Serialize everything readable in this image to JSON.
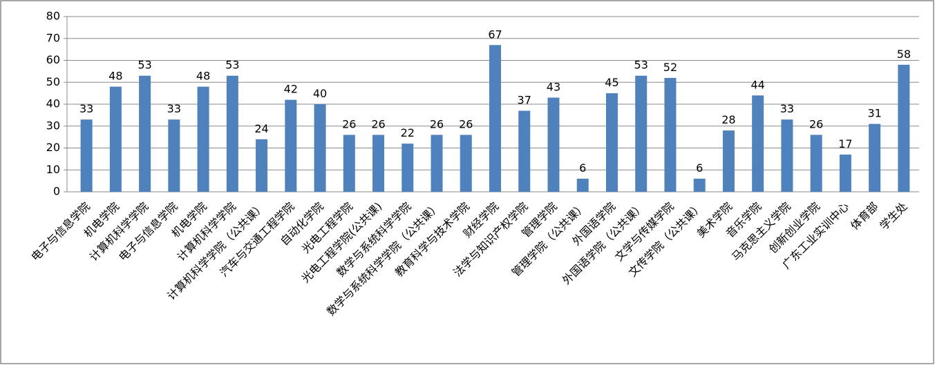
{
  "chart_data": {
    "type": "bar",
    "categories": [
      "电子与信息学院",
      "机电学院",
      "计算机科学学院",
      "电子与信息学院",
      "机电学院",
      "计算机科学学院",
      "计算机科学学院（公共课）",
      "汽车与交通工程学院",
      "自动化学院",
      "光电工程学院",
      "光电工程学院(公共课)",
      "数学与系统科学学院",
      "数学与系统科学学院（公共课）",
      "教育科学与技术学院",
      "财经学院",
      "法学与知识产权学院",
      "管理学院",
      "管理学院（公共课）",
      "外国语学院",
      "外国语学院（公共课）",
      "文学与传媒学院",
      "文传学院（公共课）",
      "美术学院",
      "音乐学院",
      "马克思主义学院",
      "创新创业学院",
      "广东工业实训中心",
      "体育部",
      "学生处"
    ],
    "values": [
      33,
      48,
      53,
      33,
      48,
      53,
      24,
      42,
      40,
      26,
      26,
      22,
      26,
      26,
      67,
      37,
      43,
      6,
      45,
      53,
      52,
      6,
      28,
      44,
      33,
      26,
      17,
      31,
      58
    ],
    "color": "#4f81bd",
    "ylim": [
      0,
      80
    ],
    "yticks": [
      0,
      10,
      20,
      30,
      40,
      50,
      60,
      70,
      80
    ],
    "grid": true
  }
}
